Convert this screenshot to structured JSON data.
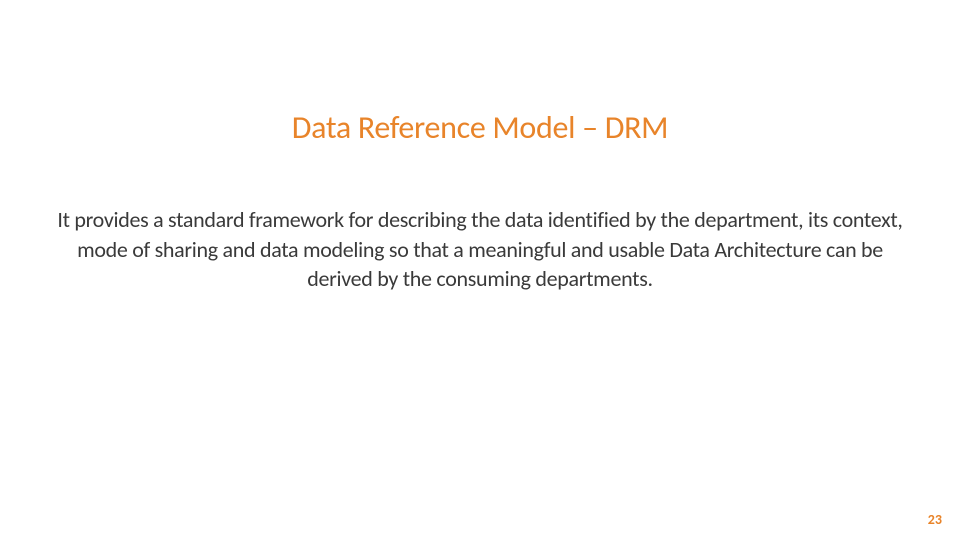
{
  "slide": {
    "title": "Data Reference Model – DRM",
    "body": "It provides a standard framework for describing the data identified by the department, its context, mode of sharing and data modeling so that a meaningful and usable Data Architecture can be derived by the consuming departments.",
    "page_number": "23",
    "colors": {
      "title_color": "#e8842a",
      "body_color": "#3a3a3a",
      "page_number_color": "#e8842a",
      "background_color": "#ffffff"
    },
    "typography": {
      "title_fontsize": 32,
      "body_fontsize": 22,
      "page_number_fontsize": 14,
      "font_family": "Segoe UI"
    }
  }
}
